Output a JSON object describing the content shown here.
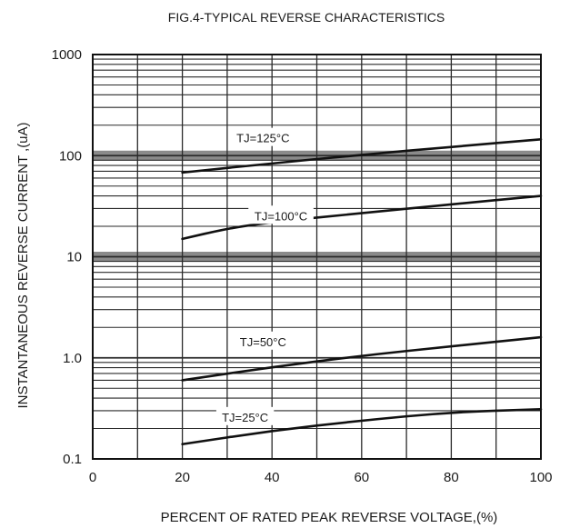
{
  "chart_data": {
    "type": "line",
    "title": "FIG.4-TYPICAL REVERSE CHARACTERISTICS",
    "xlabel": "PERCENT OF RATED PEAK REVERSE VOLTAGE,(%)",
    "ylabel": "INSTANTANEOUS  REVERSE  CURRENT ,(uA)",
    "xlim": [
      0,
      100
    ],
    "ylim": [
      0.1,
      1000
    ],
    "yscale": "log",
    "grid": true,
    "x_ticks": [
      0,
      20,
      40,
      60,
      80,
      100
    ],
    "x_tick_labels": [
      "0",
      "20",
      "40",
      "60",
      "80",
      "100"
    ],
    "y_ticks": [
      0.1,
      1,
      10,
      100,
      1000
    ],
    "y_tick_labels": [
      "0.1",
      "1.0",
      "10",
      "100",
      "1000"
    ],
    "series": [
      {
        "name": "TJ=125°C",
        "x": [
          20,
          40,
          60,
          80,
          100
        ],
        "y": [
          68,
          84,
          102,
          122,
          145
        ]
      },
      {
        "name": "TJ=100°C",
        "x": [
          20,
          30,
          40,
          60,
          80,
          100
        ],
        "y": [
          15,
          19,
          22,
          27,
          33,
          40
        ]
      },
      {
        "name": "TJ=50°C",
        "x": [
          20,
          40,
          60,
          80,
          100
        ],
        "y": [
          0.6,
          0.81,
          1.05,
          1.3,
          1.6
        ]
      },
      {
        "name": "TJ=25°C",
        "x": [
          20,
          40,
          60,
          80,
          100
        ],
        "y": [
          0.14,
          0.19,
          0.24,
          0.29,
          0.31
        ]
      }
    ],
    "colors": {
      "line": "#111111",
      "grid": "#2a2a2a",
      "band": "#8a8a8a"
    }
  }
}
